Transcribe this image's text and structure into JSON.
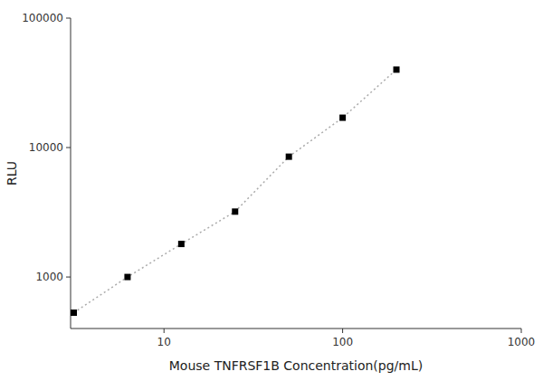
{
  "chart_data": {
    "type": "line",
    "x": [
      3.125,
      6.25,
      12.5,
      25,
      50,
      100,
      200
    ],
    "values": [
      530,
      1000,
      1800,
      3200,
      8500,
      17000,
      40000
    ],
    "xlabel": "Mouse TNFRSF1B Concentration(pg/mL)",
    "ylabel": "RLU",
    "xlim": [
      3.0,
      1000
    ],
    "ylim": [
      400,
      100000
    ],
    "xticks": [
      10,
      100,
      1000
    ],
    "yticks": [
      1000,
      10000,
      100000
    ],
    "log": true,
    "grid": false,
    "color": "#aaaaaa",
    "colors": [
      "black",
      "black",
      "black",
      "black",
      "black",
      "black",
      "black"
    ],
    "marker": "square",
    "line_style": "dotted"
  }
}
